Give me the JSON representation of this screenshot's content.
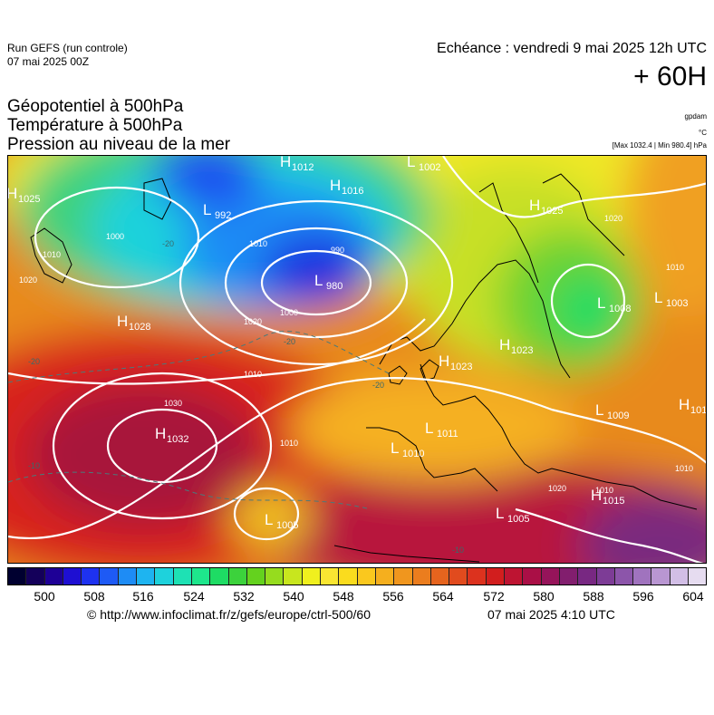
{
  "header": {
    "run_title": "Run GEFS (run controle)",
    "run_date": "07 mai 2025 00Z",
    "forecast_label": "Echéance : vendredi 9 mai 2025 12h UTC",
    "lead_time": "+ 60H"
  },
  "variables": {
    "geopotential": "Géopotentiel à 500hPa",
    "temperature": "Température à 500hPa",
    "pressure": "Pression au niveau de la mer"
  },
  "units": {
    "geopotential": "gpdam",
    "temperature": "°C",
    "minmax": "[Max 1032.4 | Min 980.4] hPa"
  },
  "pressure_centers": [
    {
      "type": "H",
      "value": "1025"
    },
    {
      "type": "L",
      "value": "992"
    },
    {
      "type": "H",
      "value": "1012"
    },
    {
      "type": "H",
      "value": "1016"
    },
    {
      "type": "L",
      "value": "1002"
    },
    {
      "type": "H",
      "value": "1025"
    },
    {
      "type": "L",
      "value": "980"
    },
    {
      "type": "L",
      "value": "1003"
    },
    {
      "type": "L",
      "value": "1008"
    },
    {
      "type": "H",
      "value": "1028"
    },
    {
      "type": "H",
      "value": "1023"
    },
    {
      "type": "H",
      "value": "1023"
    },
    {
      "type": "H",
      "value": "1032"
    },
    {
      "type": "L",
      "value": "1011"
    },
    {
      "type": "L",
      "value": "1010"
    },
    {
      "type": "L",
      "value": "1009"
    },
    {
      "type": "H",
      "value": "1015"
    },
    {
      "type": "H",
      "value": "101"
    },
    {
      "type": "L",
      "value": "1005"
    },
    {
      "type": "L",
      "value": "1005"
    }
  ],
  "isobar_labels": [
    "1000",
    "1010",
    "1020",
    "1030",
    "990",
    "1010",
    "1020",
    "1000",
    "1010",
    "1020",
    "1010",
    "1020",
    "1010",
    "1010",
    "1010"
  ],
  "temperature_labels": [
    "-20",
    "-20",
    "-20",
    "-20",
    "-10",
    "-10"
  ],
  "colorbar": {
    "colors": [
      "#000030",
      "#14005a",
      "#1e0096",
      "#1e0fd2",
      "#1e32f0",
      "#1e5af5",
      "#1e8cf5",
      "#1eb4f0",
      "#1ed2dc",
      "#1ee1b4",
      "#1ee68c",
      "#1edc64",
      "#3cd23c",
      "#64d21e",
      "#96dc1e",
      "#c8e61e",
      "#f0f01e",
      "#fae632",
      "#fadc1e",
      "#fac81e",
      "#f5af1e",
      "#f0961e",
      "#eb7d1e",
      "#e6641e",
      "#e14b1e",
      "#dc321e",
      "#d21e1e",
      "#be1432",
      "#aa0f46",
      "#96145a",
      "#821e6e",
      "#782882",
      "#7d3c96",
      "#8c55aa",
      "#a073be",
      "#b996d2",
      "#d2bee6",
      "#e6dcf0"
    ],
    "ticks": [
      "500",
      "508",
      "516",
      "524",
      "532",
      "540",
      "548",
      "556",
      "564",
      "572",
      "580",
      "588",
      "596",
      "604"
    ]
  },
  "footer": {
    "url": "© http://www.infoclimat.fr/z/gefs/europe/ctrl-500/60",
    "timestamp": "07 mai 2025  4:10 UTC"
  }
}
